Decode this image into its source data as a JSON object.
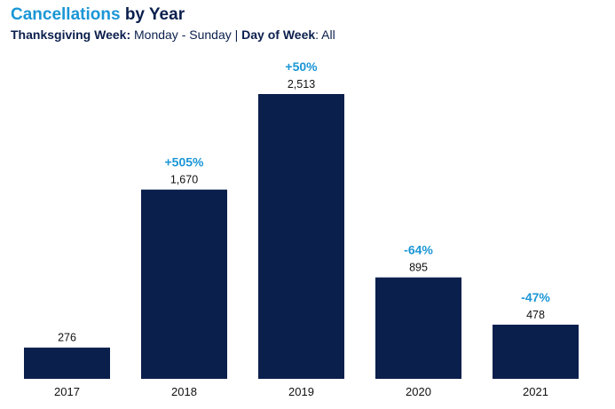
{
  "header": {
    "title_accent": "Cancellations",
    "title_rest": " by Year",
    "filter1_label": "Thanksgiving Week:",
    "filter1_value": " Monday - Sunday",
    "separator": " | ",
    "filter2_label": "Day of Week",
    "filter2_value": ": All"
  },
  "chart_data": {
    "type": "bar",
    "title": "Cancellations by Year",
    "categories": [
      "2017",
      "2018",
      "2019",
      "2020",
      "2021"
    ],
    "values": [
      276,
      1670,
      2513,
      895,
      478
    ],
    "value_labels": [
      "276",
      "1,670",
      "2,513",
      "895",
      "478"
    ],
    "change_labels": [
      "",
      "+505%",
      "+50%",
      "-64%",
      "-47%"
    ],
    "ylim": [
      0,
      2513
    ],
    "grid": false,
    "bar_color": "#0b1f4d",
    "change_color": "#1b96d6"
  }
}
